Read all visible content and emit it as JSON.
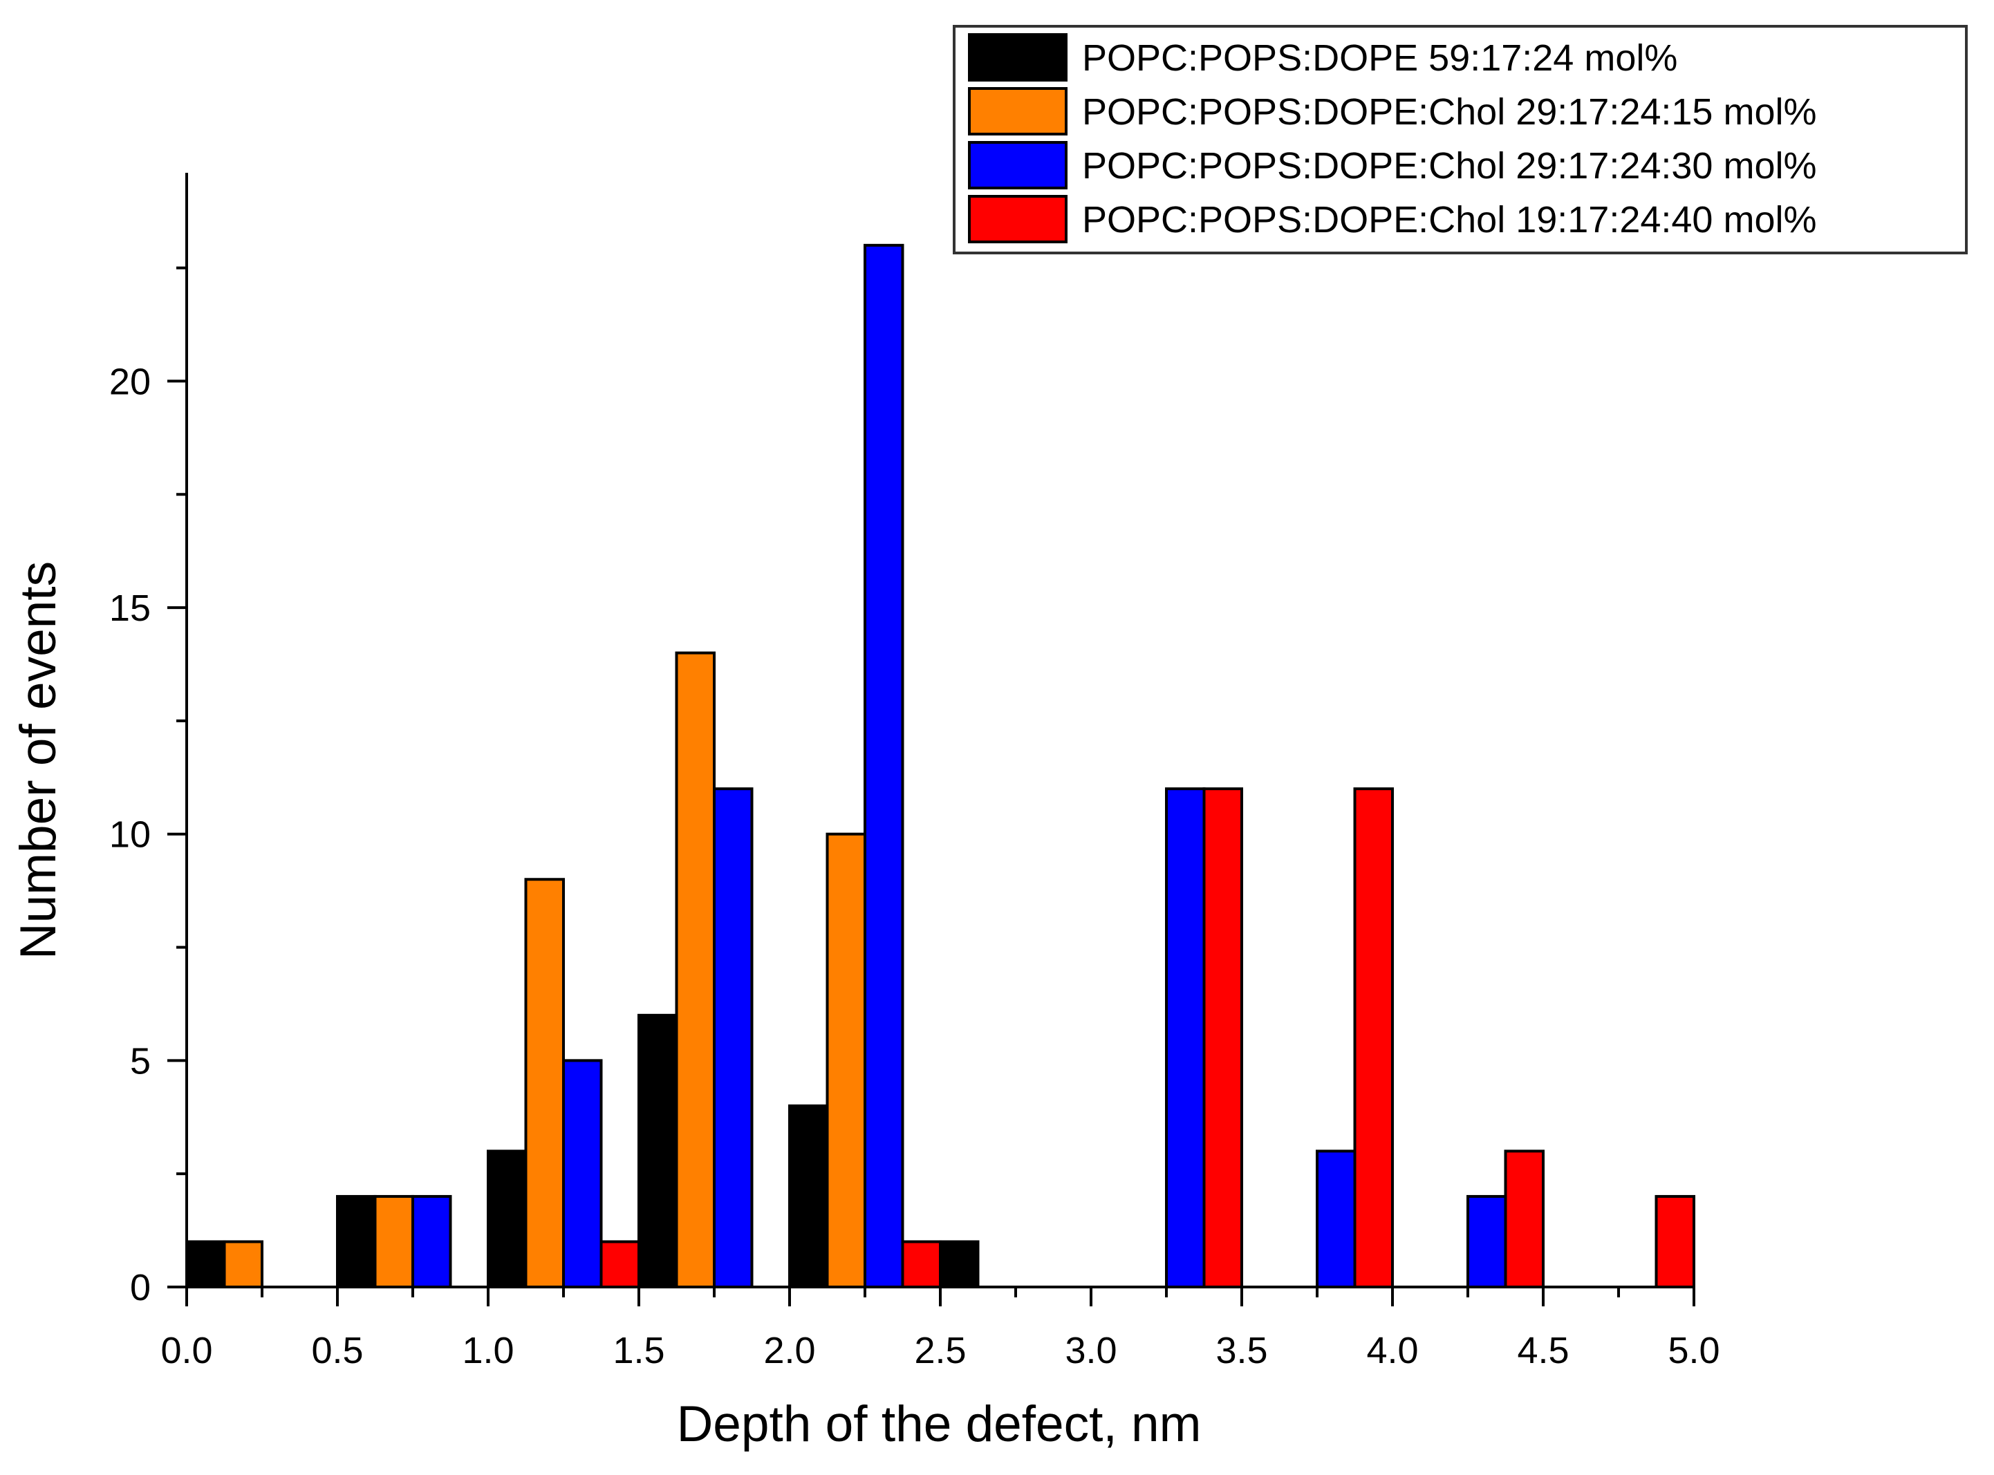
{
  "chart_data": {
    "type": "bar",
    "title": "",
    "xlabel": "Depth of the defect, nm",
    "ylabel": "Number of events",
    "xlim": [
      0.0,
      5.0
    ],
    "ylim": [
      0,
      24.6
    ],
    "bin_width": 0.5,
    "x_ticks": [
      "0.0",
      "0.5",
      "1.0",
      "1.5",
      "2.0",
      "2.5",
      "3.0",
      "3.5",
      "4.0",
      "4.5",
      "5.0"
    ],
    "y_ticks": [
      "0",
      "5",
      "10",
      "15",
      "20"
    ],
    "legend_position": "top-right",
    "grid": false,
    "series": [
      {
        "name": "POPC:POPS:DOPE 59:17:24 mol%",
        "color": "#000000",
        "values": [
          1,
          2,
          3,
          6,
          4,
          1,
          0,
          0,
          0,
          0
        ]
      },
      {
        "name": "POPC:POPS:DOPE:Chol 29:17:24:15 mol%",
        "color": "#ff8000",
        "values": [
          1,
          2,
          9,
          14,
          10,
          0,
          0,
          0,
          0,
          0
        ]
      },
      {
        "name": "POPC:POPS:DOPE:Chol 29:17:24:30 mol%",
        "color": "#0000ff",
        "values": [
          0,
          2,
          5,
          11,
          23,
          0,
          11,
          3,
          2,
          0
        ]
      },
      {
        "name": "POPC:POPS:DOPE:Chol 19:17:24:40 mol%",
        "color": "#ff0000",
        "values": [
          0,
          0,
          1,
          0,
          1,
          0,
          11,
          11,
          3,
          2
        ]
      }
    ]
  }
}
